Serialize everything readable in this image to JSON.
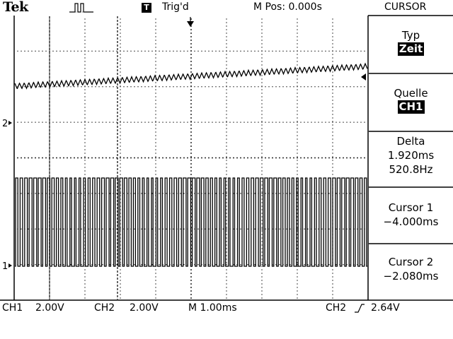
{
  "header": {
    "brand": "Tek",
    "acquisition_icon": "pulse-waveform-icon",
    "trigger_badge": "T",
    "trigger_status": "Trig'd",
    "m_pos": "M Pos: 0.000s",
    "menu_title": "CURSOR"
  },
  "menu": {
    "type_label": "Typ",
    "type_value": "Zeit",
    "source_label": "Quelle",
    "source_value": "CH1",
    "delta_label": "Delta",
    "delta_time": "1.920ms",
    "delta_freq": "520.8Hz",
    "cursor1_label": "Cursor 1",
    "cursor1_value": "−4.000ms",
    "cursor2_label": "Cursor 2",
    "cursor2_value": "−2.080ms"
  },
  "markers": {
    "ch2": "2",
    "ch1": "1"
  },
  "status": {
    "ch1_label": "CH1",
    "ch1_scale": "2.00V",
    "ch2_label": "CH2",
    "ch2_scale": "2.00V",
    "timebase": "M 1.00ms",
    "trigger_source": "CH2",
    "trigger_slope_icon": "rising-edge-icon",
    "trigger_level": "2.64V"
  },
  "colors": {
    "foreground": "#000000",
    "background": "#ffffff"
  }
}
